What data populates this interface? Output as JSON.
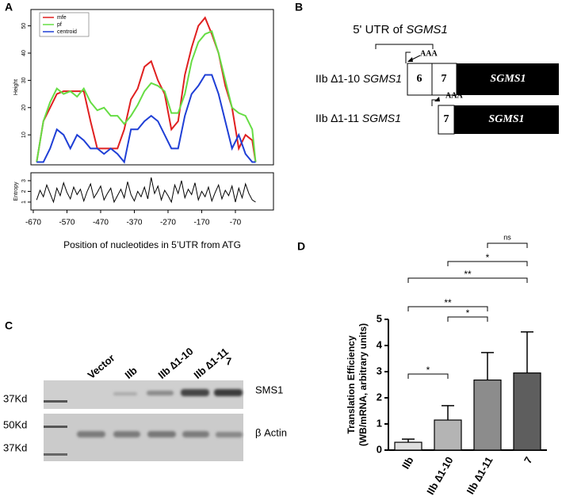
{
  "panel_labels": [
    "A",
    "B",
    "C",
    "D"
  ],
  "chart_data": [
    {
      "type": "line",
      "ylabel": "Height",
      "xlim": [
        -677,
        43
      ],
      "ylim": [
        -1,
        56
      ],
      "yticks": [
        10,
        20,
        30,
        40,
        50
      ],
      "legend": "top-left",
      "x": [
        -660,
        -640,
        -620,
        -600,
        -580,
        -560,
        -540,
        -520,
        -500,
        -480,
        -460,
        -440,
        -420,
        -400,
        -380,
        -360,
        -340,
        -320,
        -300,
        -280,
        -260,
        -240,
        -220,
        -200,
        -180,
        -160,
        -140,
        -120,
        -100,
        -80,
        -60,
        -40,
        -20,
        -10
      ],
      "series": [
        {
          "name": "mfe",
          "color": "#e02020",
          "values": [
            0,
            15,
            20,
            25,
            26,
            26,
            26,
            26,
            15,
            5,
            5,
            5,
            5,
            12,
            23,
            27,
            35,
            37,
            30,
            25,
            12,
            15,
            32,
            42,
            50,
            53,
            47,
            40,
            28,
            20,
            5,
            10,
            8,
            0
          ]
        },
        {
          "name": "pf",
          "color": "#66dd44",
          "values": [
            0,
            15,
            22,
            27,
            25,
            26,
            24,
            27,
            22,
            19,
            20,
            17,
            17,
            14,
            17,
            21,
            26,
            29,
            28,
            26,
            18,
            18,
            25,
            37,
            44,
            47,
            48,
            40,
            30,
            20,
            18,
            17,
            12,
            0
          ]
        },
        {
          "name": "centroid",
          "color": "#1f3fd6",
          "values": [
            0,
            0,
            5,
            12,
            10,
            5,
            10,
            8,
            5,
            5,
            3,
            5,
            3,
            0,
            12,
            12,
            15,
            17,
            15,
            10,
            5,
            5,
            17,
            25,
            28,
            32,
            32,
            25,
            15,
            5,
            10,
            3,
            0,
            0
          ]
        }
      ]
    },
    {
      "type": "line",
      "ylabel": "Entropy",
      "xlabel": "Position of nucleotides in 5’UTR from ATG",
      "xlim": [
        -677,
        43
      ],
      "ylim": [
        0.26,
        3.74
      ],
      "yticks": [
        1,
        2,
        3
      ],
      "xticks": [
        -670,
        -570,
        -470,
        -370,
        -270,
        -170,
        -70
      ],
      "x": [
        -660,
        -650,
        -640,
        -630,
        -620,
        -610,
        -600,
        -590,
        -580,
        -570,
        -560,
        -550,
        -540,
        -530,
        -520,
        -510,
        -500,
        -490,
        -480,
        -470,
        -460,
        -450,
        -440,
        -430,
        -420,
        -410,
        -400,
        -390,
        -380,
        -370,
        -360,
        -350,
        -340,
        -330,
        -320,
        -310,
        -300,
        -290,
        -280,
        -270,
        -260,
        -250,
        -240,
        -230,
        -220,
        -210,
        -200,
        -190,
        -180,
        -170,
        -160,
        -150,
        -140,
        -130,
        -120,
        -110,
        -100,
        -90,
        -80,
        -70,
        -60,
        -50,
        -40,
        -30,
        -20,
        -10
      ],
      "series": [
        {
          "color": "#000000",
          "values": [
            1.2,
            2.1,
            1.5,
            2.6,
            1.8,
            1.0,
            2.3,
            1.6,
            2.8,
            1.9,
            1.3,
            2.4,
            1.7,
            2.2,
            1.1,
            2.0,
            2.7,
            1.4,
            1.9,
            2.5,
            1.2,
            1.8,
            2.3,
            1.0,
            1.6,
            2.2,
            1.4,
            2.9,
            1.7,
            1.1,
            2.0,
            1.5,
            2.4,
            1.3,
            3.3,
            1.8,
            2.5,
            1.2,
            2.1,
            1.6,
            1.0,
            2.6,
            1.8,
            3.0,
            1.4,
            2.2,
            1.7,
            2.8,
            1.2,
            2.0,
            1.5,
            2.4,
            1.1,
            1.9,
            2.6,
            1.3,
            2.1,
            1.6,
            2.5,
            1.0,
            2.3,
            1.4,
            2.7,
            1.8,
            1.2,
            1.0
          ]
        }
      ]
    },
    {
      "type": "bar",
      "ylabel": [
        "Translation Efficiency",
        "(WB/mRNA, arbitrary units)"
      ],
      "categories": [
        "IIb",
        "IIb ∆1-10",
        "IIb ∆1-11",
        "7"
      ],
      "values": [
        0.3,
        1.15,
        2.68,
        2.95
      ],
      "errors": [
        0.12,
        0.55,
        1.05,
        1.57
      ],
      "colors": [
        "#dedede",
        "#b4b4b4",
        "#8c8c8c",
        "#5e5e5e"
      ],
      "ylim": [
        0,
        5
      ],
      "yticks": [
        0,
        1,
        2,
        3,
        4,
        5
      ],
      "annotations": [
        {
          "from": 0,
          "to": 1,
          "label": "*"
        },
        {
          "from": 1,
          "to": 2,
          "label": "*"
        },
        {
          "from": 0,
          "to": 2,
          "label": "**"
        },
        {
          "from": 0,
          "to": 3,
          "label": "**"
        },
        {
          "from": 1,
          "to": 3,
          "label": "*"
        },
        {
          "from": 2,
          "to": 3,
          "label": "ns"
        }
      ]
    }
  ],
  "diagram": {
    "title": "5' UTR of ",
    "title_gene": "SGMS1",
    "rows": [
      {
        "label": "IIb ∆1-10 ",
        "gene": "SGMS1",
        "tag": "AAA",
        "exons": [
          "6",
          "7"
        ],
        "cds": "SGMS1"
      },
      {
        "label": "IIb ∆1-11 ",
        "gene": "SGMS1",
        "tag": "AAA",
        "exons": [
          "7"
        ],
        "cds": "SGMS1"
      }
    ]
  },
  "blot": {
    "lanes": [
      "Vector",
      "IIb",
      "IIb ∆1-10",
      "IIb ∆1-11",
      "7"
    ],
    "rows": [
      "SMS1",
      "β Actin"
    ],
    "markers": [
      "37Kd",
      "50Kd",
      "37Kd"
    ]
  }
}
